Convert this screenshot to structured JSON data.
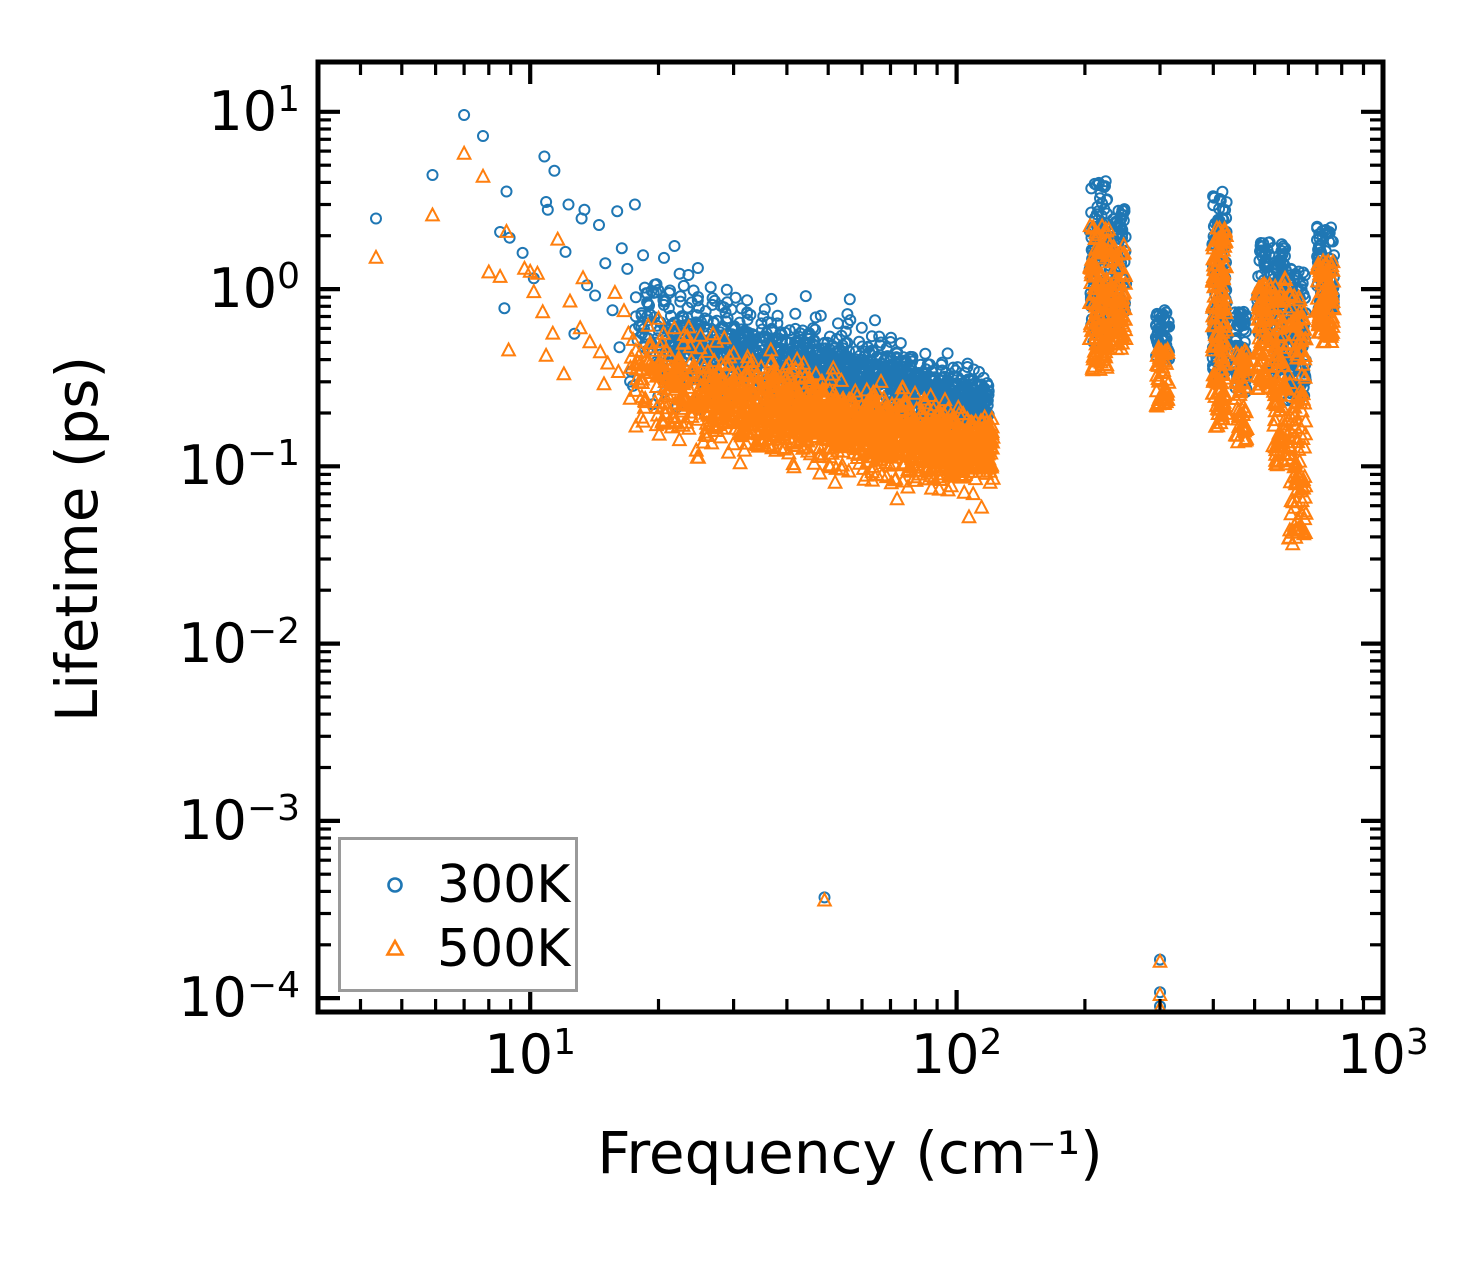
{
  "chart_data": {
    "type": "scatter",
    "title": "",
    "xlabel": "Frequency (cm⁻¹)",
    "ylabel": "Lifetime (ps)",
    "x_scale": "log",
    "y_scale": "log",
    "xlim": [
      3.18,
      1000
    ],
    "ylim": [
      8.35e-05,
      19.1
    ],
    "grid": false,
    "x_major_ticks": [
      10,
      100,
      1000
    ],
    "x_tick_exponents": [
      1,
      2,
      3
    ],
    "x_minor_ticks": [
      4,
      5,
      6,
      7,
      8,
      9,
      20,
      30,
      40,
      50,
      60,
      70,
      80,
      90,
      200,
      300,
      400,
      500,
      600,
      700,
      800,
      900
    ],
    "y_major_ticks": [
      10,
      1,
      0.1,
      0.01,
      0.001,
      0.0001
    ],
    "y_tick_exponents": [
      1,
      0,
      -1,
      -2,
      -3,
      -4
    ],
    "y_minor_ticks": [
      0.0002,
      0.0003,
      0.0004,
      0.0005,
      0.0006,
      0.0007,
      0.0008,
      0.0009,
      0.002,
      0.003,
      0.004,
      0.005,
      0.006,
      0.007,
      0.008,
      0.009,
      0.02,
      0.03,
      0.04,
      0.05,
      0.06,
      0.07,
      0.08,
      0.09,
      0.2,
      0.3,
      0.4,
      0.5,
      0.6,
      0.7,
      0.8,
      0.9,
      2,
      3,
      4,
      5,
      6,
      7,
      8,
      9
    ],
    "legend": {
      "position": "lower-left",
      "entries": [
        {
          "label": "300K",
          "marker": "circle",
          "color": "#1f77b4"
        },
        {
          "label": "500K",
          "marker": "triangle-up",
          "color": "#ff7f0e"
        }
      ]
    },
    "marker": {
      "size": 13,
      "stroke_width": 2
    },
    "seed": 1337,
    "series": [
      {
        "name": "300K",
        "marker": "circle",
        "color": "#1f77b4",
        "sparse_points": [
          [
            4.35,
            2.5
          ],
          [
            5.9,
            4.4
          ],
          [
            7.0,
            9.6
          ],
          [
            7.75,
            7.3
          ],
          [
            8.8,
            3.55
          ],
          [
            8.5,
            2.1
          ],
          [
            8.95,
            1.95
          ],
          [
            8.7,
            0.78
          ],
          [
            10.8,
            5.6
          ],
          [
            11.4,
            4.65
          ],
          [
            10.9,
            3.1
          ],
          [
            11.0,
            2.8
          ],
          [
            12.3,
            3.0
          ],
          [
            13.4,
            2.8
          ],
          [
            13.2,
            2.5
          ],
          [
            14.5,
            2.3
          ],
          [
            15.0,
            1.4
          ],
          [
            16.0,
            2.75
          ],
          [
            16.4,
            1.7
          ],
          [
            16.9,
            1.3
          ],
          [
            12.1,
            1.62
          ],
          [
            13.6,
            1.05
          ],
          [
            14.2,
            0.92
          ],
          [
            15.6,
            0.76
          ],
          [
            17.6,
            3.0
          ],
          [
            18.4,
            1.55
          ],
          [
            19.6,
            1.06
          ],
          [
            12.7,
            0.56
          ],
          [
            16.2,
            0.47
          ],
          [
            19.1,
            0.72
          ],
          [
            20.6,
            1.5
          ],
          [
            21.2,
            0.95
          ],
          [
            18.0,
            0.62
          ],
          [
            21.8,
            1.75
          ],
          [
            9.6,
            1.6
          ],
          [
            10.2,
            1.15
          ],
          [
            22.5,
            0.85
          ],
          [
            23.5,
            1.2
          ]
        ],
        "floor_points": [
          [
            49,
            0.00037
          ],
          [
            300,
            0.000165
          ],
          [
            300,
            0.000108
          ],
          [
            300,
            9e-05
          ]
        ],
        "band": {
          "f_range": [
            17,
            119
          ],
          "log10_tau_at_100": -0.615,
          "slope": -0.5,
          "sigma": [
            0.155,
            0.085
          ],
          "count": 1400,
          "density_pow": 0.72,
          "high_outliers": {
            "count": 18,
            "f_range": [
              19,
              80
            ],
            "offset_range": [
              0.2,
              0.48
            ]
          },
          "low_outliers": {
            "count": 0,
            "f_range": [
              50,
              110
            ],
            "offset_range": [
              -0.3,
              -0.2
            ]
          }
        }
      },
      {
        "name": "500K",
        "marker": "triangle-up",
        "color": "#ff7f0e",
        "sparse_points": [
          [
            4.35,
            1.5
          ],
          [
            5.9,
            2.6
          ],
          [
            7.0,
            5.8
          ],
          [
            7.75,
            4.3
          ],
          [
            8.8,
            2.1
          ],
          [
            8.0,
            1.24
          ],
          [
            8.5,
            1.17
          ],
          [
            9.7,
            1.3
          ],
          [
            10.0,
            1.25
          ],
          [
            10.4,
            1.22
          ],
          [
            10.2,
            0.96
          ],
          [
            10.7,
            0.74
          ],
          [
            8.9,
            0.45
          ],
          [
            10.9,
            0.42
          ],
          [
            11.6,
            1.9
          ],
          [
            12.4,
            0.85
          ],
          [
            13.1,
            0.6
          ],
          [
            13.8,
            0.5
          ],
          [
            14.6,
            0.44
          ],
          [
            15.2,
            0.38
          ],
          [
            16.1,
            0.34
          ],
          [
            12.0,
            0.33
          ],
          [
            17.0,
            0.56
          ],
          [
            18.2,
            0.44
          ],
          [
            19.3,
            0.36
          ],
          [
            20.4,
            0.5
          ],
          [
            21.3,
            0.42
          ],
          [
            14.9,
            0.29
          ],
          [
            17.8,
            0.31
          ],
          [
            19.8,
            0.28
          ],
          [
            21.0,
            0.33
          ],
          [
            11.3,
            0.56
          ],
          [
            16.6,
            0.75
          ],
          [
            18.9,
            0.62
          ],
          [
            20.0,
            0.68
          ],
          [
            13.3,
            1.15
          ],
          [
            15.8,
            0.95
          ],
          [
            22.3,
            0.38
          ],
          [
            23.0,
            0.55
          ]
        ],
        "floor_points": [
          [
            49,
            0.000355
          ],
          [
            300,
            0.00016
          ],
          [
            300,
            0.000104
          ],
          [
            300,
            8.75e-05
          ]
        ],
        "band": {
          "f_range": [
            17,
            122
          ],
          "log10_tau_at_100": -0.895,
          "slope": -0.5,
          "sigma": [
            0.15,
            0.09
          ],
          "count": 1600,
          "density_pow": 0.72,
          "high_outliers": {
            "count": 8,
            "f_range": [
              20,
              45
            ],
            "offset_range": [
              0.2,
              0.4
            ]
          },
          "low_outliers": {
            "count": 12,
            "f_range": [
              48,
              115
            ],
            "offset_range": [
              -0.38,
              -0.18
            ]
          }
        }
      }
    ],
    "optical_clusters": [
      {
        "f_range": [
          205,
          228
        ],
        "tau_by_series": [
          [
            0.5,
            4.1
          ],
          [
            0.34,
            2.3
          ]
        ],
        "count": 130
      },
      {
        "f_range": [
          228,
          250
        ],
        "tau_by_series": [
          [
            0.57,
            2.95
          ],
          [
            0.45,
            1.8
          ]
        ],
        "count": 85
      },
      {
        "f_range": [
          293,
          315
        ],
        "tau_by_series": [
          [
            0.4,
            0.78
          ],
          [
            0.215,
            0.47
          ]
        ],
        "count": 48
      },
      {
        "f_range": [
          398,
          430
        ],
        "tau_by_series": [
          [
            0.33,
            3.6
          ],
          [
            0.165,
            2.2
          ]
        ],
        "count": 150
      },
      {
        "f_range": [
          450,
          480
        ],
        "tau_by_series": [
          [
            0.26,
            0.75
          ],
          [
            0.135,
            0.45
          ]
        ],
        "count": 65
      },
      {
        "f_range": [
          506,
          545
        ],
        "tau_by_series": [
          [
            0.52,
            1.9
          ],
          [
            0.27,
            1.15
          ]
        ],
        "count": 80
      },
      {
        "f_range": [
          552,
          592
        ],
        "tau_by_series": [
          [
            0.33,
            1.8
          ],
          [
            0.095,
            1.15
          ]
        ],
        "count": 95
      },
      {
        "f_range": [
          598,
          660
        ],
        "tau_by_series": [
          [
            0.235,
            1.35
          ],
          [
            0.036,
            0.95
          ]
        ],
        "count": 130
      },
      {
        "f_range": [
          700,
          768
        ],
        "tau_by_series": [
          [
            0.72,
            2.25
          ],
          [
            0.5,
            1.48
          ]
        ],
        "count": 95
      }
    ]
  }
}
